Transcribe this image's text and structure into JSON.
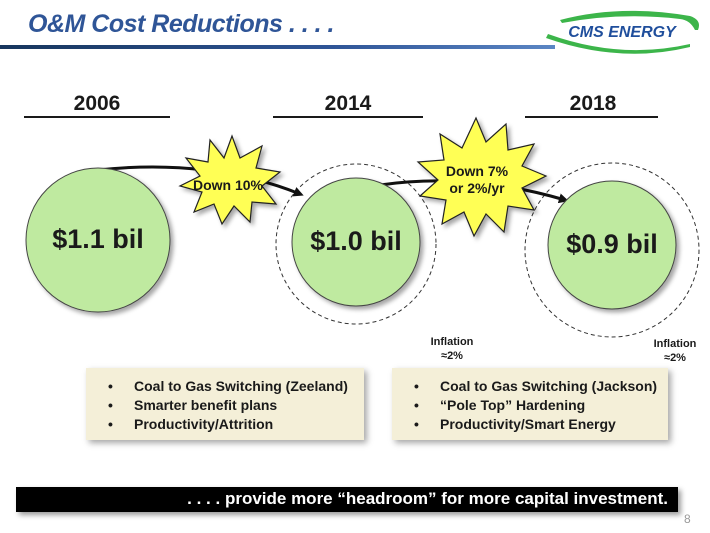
{
  "title": "O&M Cost Reductions . . . .",
  "logo": {
    "text": "CMS ENERGY"
  },
  "columns": [
    {
      "year": "2006",
      "amount": "$1.1 bil",
      "inflation": ""
    },
    {
      "year": "2014",
      "amount": "$1.0 bil",
      "inflation_line1": "Inflation",
      "inflation_line2": "≈2%"
    },
    {
      "year": "2018",
      "amount": "$0.9 bil",
      "inflation_line1": "Inflation",
      "inflation_line2": "≈2%"
    }
  ],
  "reductions": [
    {
      "line1": "Down 10%",
      "line2": ""
    },
    {
      "line1": "Down 7%",
      "line2": "or 2%/yr"
    }
  ],
  "notes": [
    {
      "items": [
        "Coal to Gas Switching (Zeeland)",
        "Smarter benefit plans",
        "Productivity/Attrition"
      ]
    },
    {
      "items": [
        "Coal to Gas Switching (Jackson)",
        "“Pole Top” Hardening",
        "Productivity/Smart Energy"
      ]
    }
  ],
  "banner": ". . . . provide more “headroom” for more capital investment.",
  "page_number": "8",
  "colors": {
    "circle_fill": "#bfeaa0",
    "burst_fill": "#ffff55",
    "title": "#2f5597",
    "logo_green": "#3cb54a",
    "logo_blue": "#1f4e9c"
  }
}
